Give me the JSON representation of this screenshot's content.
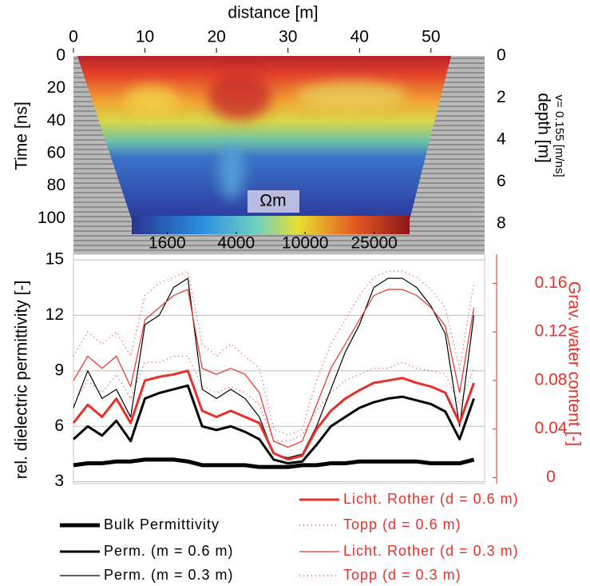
{
  "chart_data": [
    {
      "type": "radargram",
      "x_label": "distance [m]",
      "y_label": "Time [ns]",
      "y2_label": "depth [m]",
      "annotation": "v= 0.155 [m/ns]",
      "xlim": [
        0,
        57.5
      ],
      "xticks": [
        0,
        10,
        20,
        30,
        40,
        50
      ],
      "ylim": [
        0,
        122
      ],
      "yticks": [
        0,
        20,
        40,
        60,
        80,
        100
      ],
      "y2lim": [
        0,
        9.45
      ],
      "y2ticks": [
        0,
        2,
        4,
        6,
        8
      ],
      "colorbar": {
        "label": "Ωm",
        "log": true,
        "lim": [
          1000,
          40000
        ],
        "ticks": [
          1600,
          4000,
          10000,
          25000
        ]
      }
    },
    {
      "type": "line",
      "y_label": "rel. dielectric permittivity [-]",
      "y2_label": "Grav. water content [-]",
      "y2_color": "#e8302a",
      "xlim": [
        0,
        57.5
      ],
      "ylim": [
        2.9,
        15.3
      ],
      "yticks": [
        3,
        6,
        9,
        12,
        15
      ],
      "y2lim": [
        -0.005,
        0.184
      ],
      "y2ticks": [
        0,
        0.04,
        0.08,
        0.12,
        0.16
      ],
      "grid": true,
      "x": [
        0,
        2,
        4,
        6,
        8,
        10,
        12,
        14,
        16,
        18,
        20,
        22,
        24,
        26,
        28,
        30,
        32,
        34,
        36,
        38,
        40,
        42,
        44,
        46,
        48,
        50,
        52,
        54,
        56
      ],
      "series": [
        {
          "name": "Bulk Permittivity",
          "color": "#000000",
          "style": "bold",
          "values": [
            3.9,
            4,
            4,
            4.1,
            4.1,
            4.2,
            4.2,
            4.2,
            4.1,
            3.9,
            3.9,
            3.9,
            3.9,
            3.8,
            3.8,
            3.8,
            3.9,
            3.9,
            4,
            4,
            4.1,
            4.1,
            4.1,
            4.1,
            4.1,
            4,
            4,
            4,
            4.2
          ]
        },
        {
          "name": "Perm. (m = 0.6 m)",
          "color": "#000000",
          "style": "medium",
          "values": [
            5.3,
            6,
            5.5,
            6.3,
            5.2,
            7.5,
            7.8,
            8,
            8.2,
            6,
            5.8,
            6,
            5.7,
            5.3,
            4.2,
            4,
            4.1,
            5,
            6,
            6.5,
            7,
            7.3,
            7.5,
            7.6,
            7.4,
            7.2,
            6.8,
            5.3,
            7.5
          ]
        },
        {
          "name": "Perm. (m = 0.3 m)",
          "color": "#000000",
          "style": "thin",
          "values": [
            7,
            9,
            7.5,
            8,
            6.5,
            11.5,
            12,
            13.5,
            14,
            8,
            7.5,
            8,
            7.5,
            6.5,
            4.5,
            4.3,
            4.5,
            6,
            8,
            10,
            11.5,
            13.5,
            14,
            14,
            13.5,
            12.5,
            11,
            6,
            12
          ]
        },
        {
          "name": "Licht. Rother (d = 0.6 m)",
          "color": "#e8302a",
          "style": "medium",
          "axis": "y2",
          "values": [
            0.045,
            0.06,
            0.05,
            0.065,
            0.045,
            0.08,
            0.083,
            0.085,
            0.088,
            0.055,
            0.05,
            0.055,
            0.05,
            0.045,
            0.02,
            0.015,
            0.018,
            0.04,
            0.055,
            0.065,
            0.072,
            0.078,
            0.08,
            0.082,
            0.078,
            0.075,
            0.07,
            0.045,
            0.078
          ]
        },
        {
          "name": "Topp (d = 0.6 m)",
          "color": "#e8302a",
          "style": "dotted",
          "axis": "y2",
          "values": [
            0.06,
            0.08,
            0.07,
            0.085,
            0.065,
            0.095,
            0.095,
            0.1,
            0.1,
            0.075,
            0.07,
            0.075,
            0.07,
            0.06,
            0.03,
            0.03,
            0.035,
            0.055,
            0.07,
            0.08,
            0.085,
            0.09,
            0.09,
            0.095,
            0.09,
            0.088,
            0.085,
            0.06,
            0.09
          ]
        },
        {
          "name": "Licht. Rother (d = 0.3 m)",
          "color": "#e8302a",
          "style": "thin",
          "axis": "y2",
          "values": [
            0.08,
            0.1,
            0.09,
            0.1,
            0.075,
            0.13,
            0.14,
            0.15,
            0.155,
            0.09,
            0.085,
            0.09,
            0.085,
            0.07,
            0.03,
            0.025,
            0.03,
            0.06,
            0.09,
            0.11,
            0.13,
            0.15,
            0.155,
            0.155,
            0.15,
            0.14,
            0.125,
            0.07,
            0.14
          ]
        },
        {
          "name": "Topp (d = 0.3 m)",
          "color": "#e8302a",
          "style": "dotted",
          "axis": "y2",
          "values": [
            0.1,
            0.12,
            0.11,
            0.12,
            0.1,
            0.15,
            0.16,
            0.165,
            0.17,
            0.11,
            0.1,
            0.11,
            0.1,
            0.09,
            0.04,
            0.035,
            0.04,
            0.08,
            0.11,
            0.13,
            0.15,
            0.165,
            0.17,
            0.17,
            0.165,
            0.155,
            0.14,
            0.09,
            0.16
          ]
        }
      ]
    }
  ]
}
